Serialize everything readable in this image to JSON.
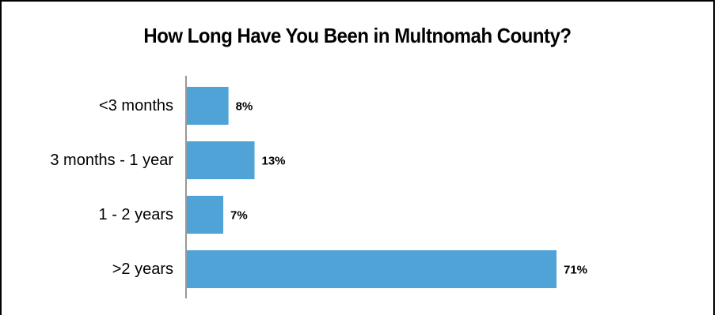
{
  "chart_data": {
    "type": "bar",
    "orientation": "horizontal",
    "title": "How Long Have You Been in Multnomah County?",
    "categories": [
      "<3 months",
      "3 months - 1 year",
      "1 - 2 years",
      ">2 years"
    ],
    "values": [
      8,
      13,
      7,
      71
    ],
    "value_labels": [
      "8%",
      "13%",
      "7%",
      "71%"
    ],
    "xlim": [
      0,
      100
    ],
    "grid": false,
    "legend": "none",
    "bar_color": "#4fa3d6",
    "axis_color": "#999999"
  }
}
